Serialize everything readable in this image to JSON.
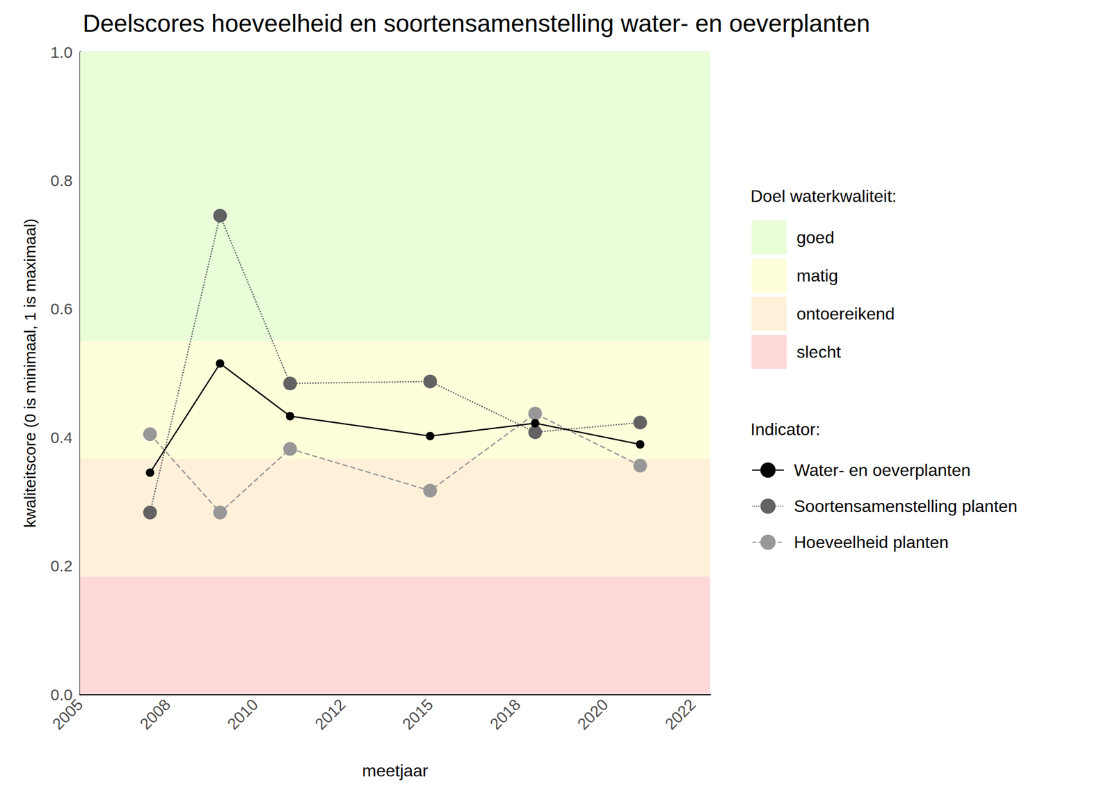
{
  "chart_data": {
    "type": "line",
    "title": "Deelscores hoeveelheid en soortensamenstelling water- en oeverplanten",
    "x_label": "meetjaar",
    "y_label": "kwaliteitscore (0 is minimaal, 1 is maximaal)",
    "x": [
      2007,
      2009,
      2011,
      2015,
      2018,
      2021
    ],
    "xlim": [
      2005,
      2023
    ],
    "xticks": [
      2005,
      {
        "value": 2007.5,
        "label": "2008"
      },
      2010,
      {
        "value": 2012.5,
        "label": "2012"
      },
      2015,
      {
        "value": 2017.5,
        "label": "2018"
      },
      2020,
      {
        "value": 2022.5,
        "label": "2022"
      }
    ],
    "ylim": [
      0,
      1
    ],
    "yticks": [
      {
        "value": 0,
        "label": "0.0"
      },
      0.2,
      0.4,
      0.6,
      0.8,
      {
        "value": 1,
        "label": "1.0"
      }
    ],
    "grid": true,
    "legend": "right",
    "bands_title": "Doel waterkwaliteit:",
    "bands": [
      {
        "name": "goed",
        "color": "#e8fdd8",
        "from": 0.55,
        "to": 1
      },
      {
        "name": "matig",
        "color": "#fefedb",
        "from": 0.367,
        "to": 0.55
      },
      {
        "name": "ontoereikend",
        "color": "#fff0da",
        "from": 0.183,
        "to": 0.367
      },
      {
        "name": "slecht",
        "color": "#ffd9da",
        "from": 0,
        "to": 0.183
      }
    ],
    "series_title": "Indicator:",
    "series": [
      {
        "name": "Water- en oeverplanten",
        "color": "#000000",
        "marker": "circle",
        "line_style": "solid",
        "values": [
          0.345,
          0.515,
          0.433,
          0.402,
          0.422,
          0.389
        ]
      },
      {
        "name": "Soortensamenstelling planten",
        "color": "#626262",
        "marker": "circle",
        "line_style": "dotted",
        "values": [
          0.283,
          0.745,
          0.484,
          0.487,
          0.408,
          0.423
        ]
      },
      {
        "name": "Hoeveelheid planten",
        "color": "#979797",
        "marker": "circle",
        "line_style": "dashed",
        "values": [
          0.405,
          0.283,
          0.382,
          0.317,
          0.437,
          0.356
        ]
      }
    ]
  }
}
